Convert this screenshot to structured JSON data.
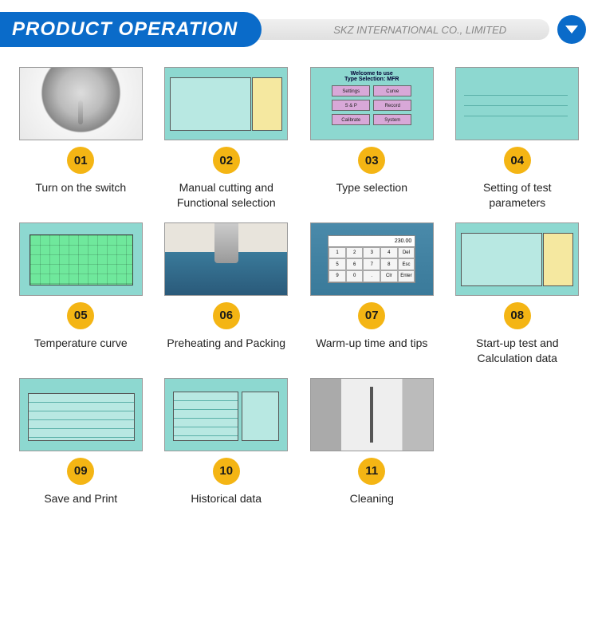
{
  "header": {
    "title": "PRODUCT OPERATION",
    "company": "SKZ INTERNATIONAL CO., LIMITED"
  },
  "colors": {
    "brand_blue": "#0a6bc9",
    "badge_yellow": "#f4b514",
    "screen_teal": "#8dd8d0"
  },
  "menu_thumb": {
    "title1": "Welcome to use",
    "title2": "Type Selection:",
    "dropdown": "MFR",
    "buttons": [
      "Settings",
      "Curve",
      "S & P",
      "Record",
      "Calibrate",
      "System"
    ]
  },
  "numpad_thumb": {
    "display": "230.00"
  },
  "steps": [
    {
      "num": "01",
      "caption": "Turn on the switch",
      "thumb_class": "thumb-switch"
    },
    {
      "num": "02",
      "caption": "Manual cutting and Functional selection",
      "thumb_class": "thumb-screen-a"
    },
    {
      "num": "03",
      "caption": "Type selection",
      "thumb_class": "thumb-menu"
    },
    {
      "num": "04",
      "caption": "Setting of test parameters",
      "thumb_class": "thumb-params"
    },
    {
      "num": "05",
      "caption": "Temperature curve",
      "thumb_class": "thumb-curve"
    },
    {
      "num": "06",
      "caption": "Preheating and Packing",
      "thumb_class": "thumb-preheat"
    },
    {
      "num": "07",
      "caption": "Warm-up time and tips",
      "thumb_class": "thumb-numpad"
    },
    {
      "num": "08",
      "caption": "Start-up test and Calculation data",
      "thumb_class": "thumb-screen-a"
    },
    {
      "num": "09",
      "caption": "Save and Print",
      "thumb_class": "thumb-table"
    },
    {
      "num": "10",
      "caption": "Historical data",
      "thumb_class": "thumb-hist"
    },
    {
      "num": "11",
      "caption": "Cleaning",
      "thumb_class": "thumb-clean"
    }
  ]
}
